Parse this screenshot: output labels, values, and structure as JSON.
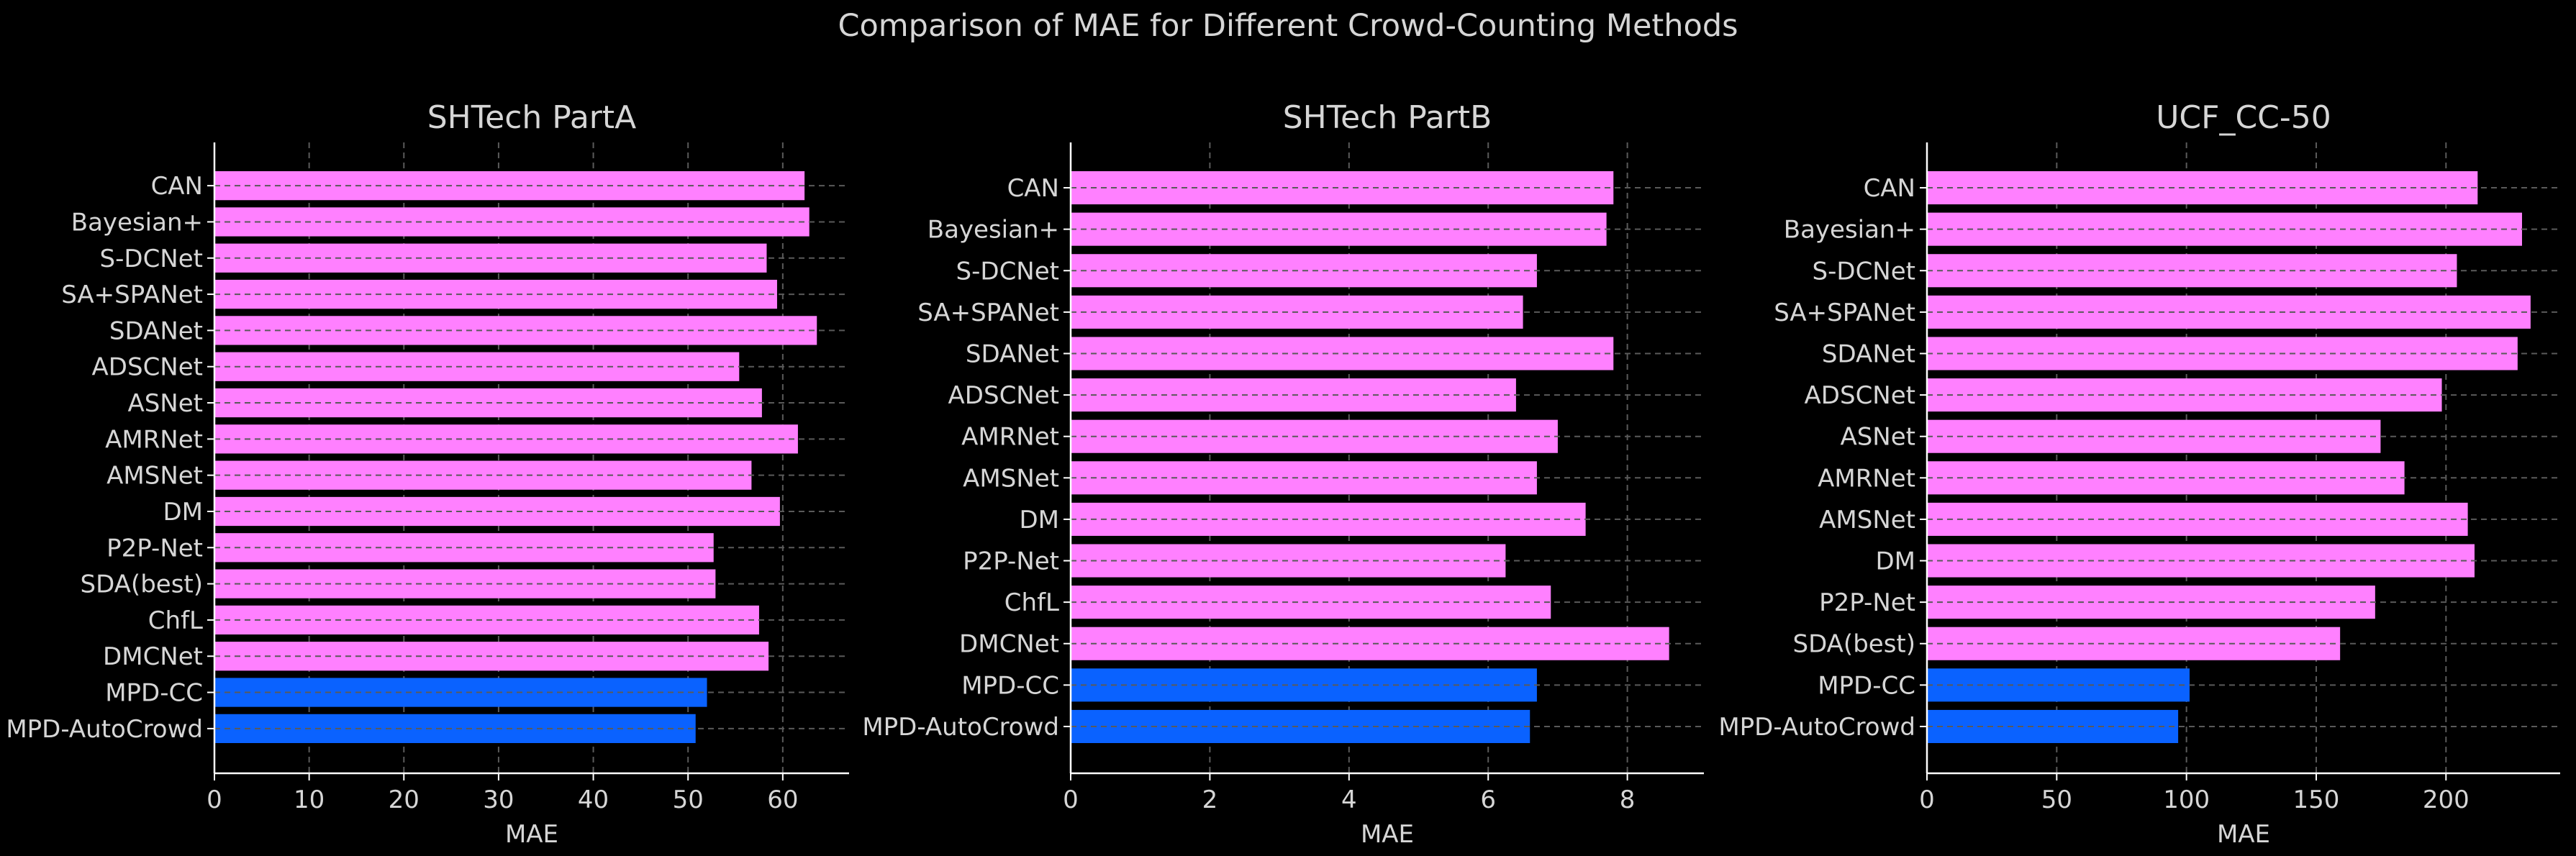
{
  "figure": {
    "suptitle": "Comparison of MAE for Different Crowd-Counting Methods"
  },
  "colors": {
    "background": "#000000",
    "bar_default": "#ff80ff",
    "bar_highlight": "#0a62ff",
    "text": "#d6d6d6",
    "axis": "#ffffff",
    "grid": "#5a5a5a"
  },
  "chart_data": [
    {
      "type": "bar",
      "orientation": "horizontal",
      "title": "SHTech PartA",
      "xlabel": "MAE",
      "ylabel": "",
      "categories": [
        "CAN",
        "Bayesian+",
        "S-DCNet",
        "SA+SPANet",
        "SDANet",
        "ADSCNet",
        "ASNet",
        "AMRNet",
        "AMSNet",
        "DM",
        "P2P-Net",
        "SDA(best)",
        "ChfL",
        "DMCNet",
        "MPD-CC",
        "MPD-AutoCrowd"
      ],
      "values": [
        62.3,
        62.8,
        58.3,
        59.4,
        63.6,
        55.4,
        57.8,
        61.6,
        56.7,
        59.7,
        52.7,
        52.9,
        57.5,
        58.5,
        52.0,
        50.8
      ],
      "highlight": [
        "MPD-CC",
        "MPD-AutoCrowd"
      ],
      "xlim": [
        0,
        67
      ],
      "xticks": [
        0,
        10,
        20,
        30,
        40,
        50,
        60
      ],
      "grid": true
    },
    {
      "type": "bar",
      "orientation": "horizontal",
      "title": "SHTech PartB",
      "xlabel": "MAE",
      "ylabel": "",
      "categories": [
        "CAN",
        "Bayesian+",
        "S-DCNet",
        "SA+SPANet",
        "SDANet",
        "ADSCNet",
        "AMRNet",
        "AMSNet",
        "DM",
        "P2P-Net",
        "ChfL",
        "DMCNet",
        "MPD-CC",
        "MPD-AutoCrowd"
      ],
      "values": [
        7.8,
        7.7,
        6.7,
        6.5,
        7.8,
        6.4,
        7.0,
        6.7,
        7.4,
        6.25,
        6.9,
        8.6,
        6.7,
        6.6
      ],
      "highlight": [
        "MPD-CC",
        "MPD-AutoCrowd"
      ],
      "xlim": [
        0,
        9.1
      ],
      "xticks": [
        0,
        2,
        4,
        6,
        8
      ],
      "grid": true
    },
    {
      "type": "bar",
      "orientation": "horizontal",
      "title": "UCF_CC-50",
      "xlabel": "MAE",
      "ylabel": "",
      "categories": [
        "CAN",
        "Bayesian+",
        "S-DCNet",
        "SA+SPANet",
        "SDANet",
        "ADSCNet",
        "ASNet",
        "AMRNet",
        "AMSNet",
        "DM",
        "P2P-Net",
        "SDA(best)",
        "MPD-CC",
        "MPD-AutoCrowd"
      ],
      "values": [
        212.2,
        229.3,
        204.2,
        232.6,
        227.6,
        198.4,
        174.8,
        184.0,
        208.4,
        211.0,
        172.7,
        159.2,
        101.2,
        96.8
      ],
      "highlight": [
        "MPD-CC",
        "MPD-AutoCrowd"
      ],
      "xlim": [
        0,
        244
      ],
      "xticks": [
        0,
        50,
        100,
        150,
        200
      ],
      "grid": true
    }
  ]
}
